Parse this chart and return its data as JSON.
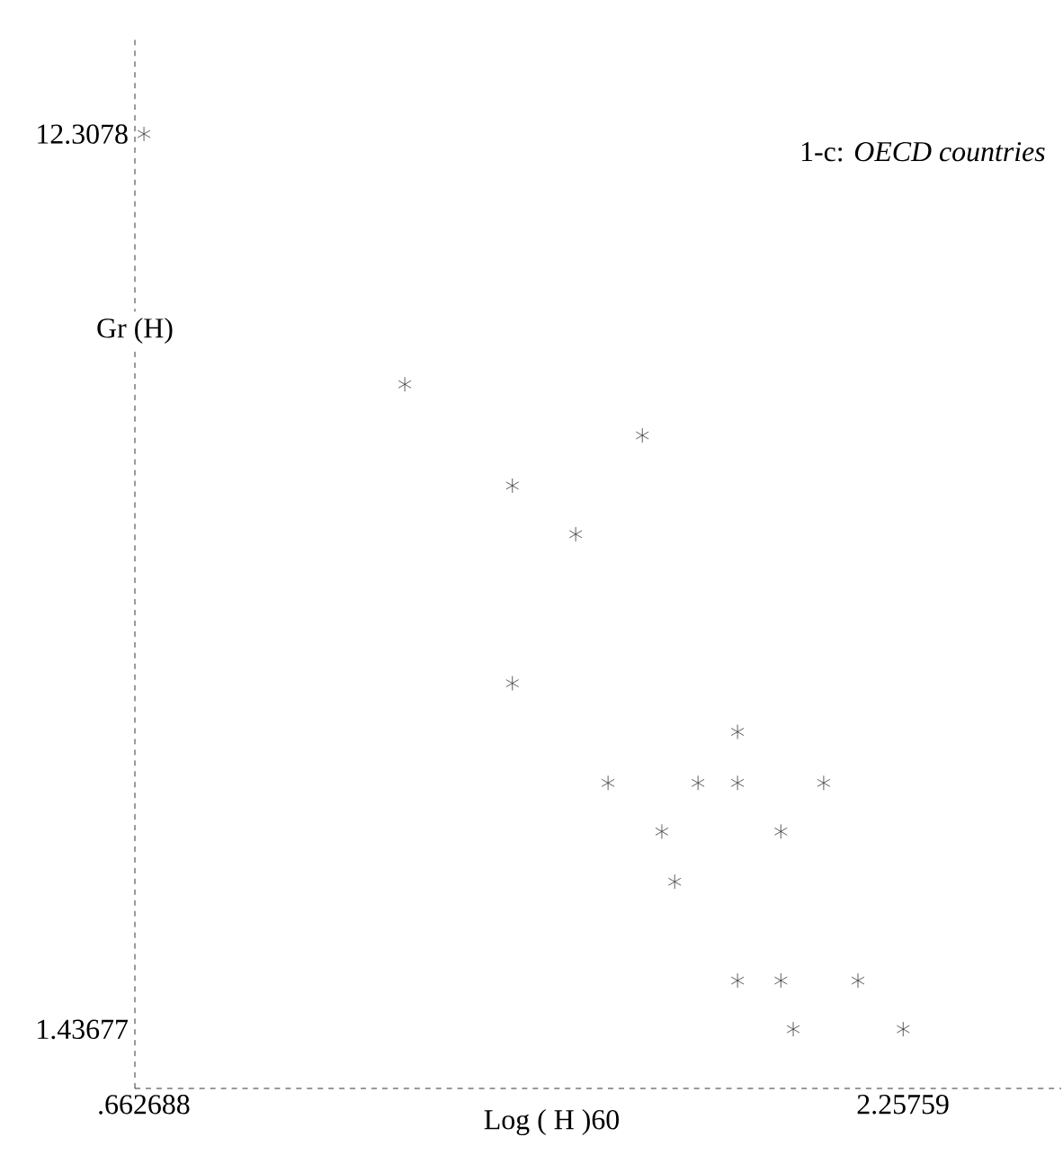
{
  "chart_data": {
    "type": "scatter",
    "xlabel": "Log ( H )60",
    "ylabel": "Gr (H)",
    "annotations": [
      "1-c: *OECD countries*"
    ],
    "x": [
      0.663,
      1.211,
      1.71,
      1.437,
      1.57,
      1.437,
      1.91,
      1.638,
      1.827,
      1.91,
      2.091,
      1.751,
      2.001,
      1.778,
      1.91,
      2.001,
      2.163,
      2.027,
      2.258
    ],
    "values": [
      12.31,
      9.27,
      8.65,
      8.04,
      7.45,
      5.64,
      5.05,
      4.43,
      4.43,
      4.43,
      4.43,
      3.84,
      3.84,
      3.23,
      2.03,
      2.03,
      2.03,
      1.44,
      1.44
    ],
    "color": "#333333",
    "marker": "cross",
    "xlim": [
      0.644,
      2.59
    ],
    "ylim": [
      0.72,
      13.5
    ],
    "xticks": [
      {
        "value": 0.662688,
        "label": ".662688"
      },
      2.25759
    ],
    "yticks": [
      1.43677,
      12.3078
    ],
    "grid": false
  }
}
